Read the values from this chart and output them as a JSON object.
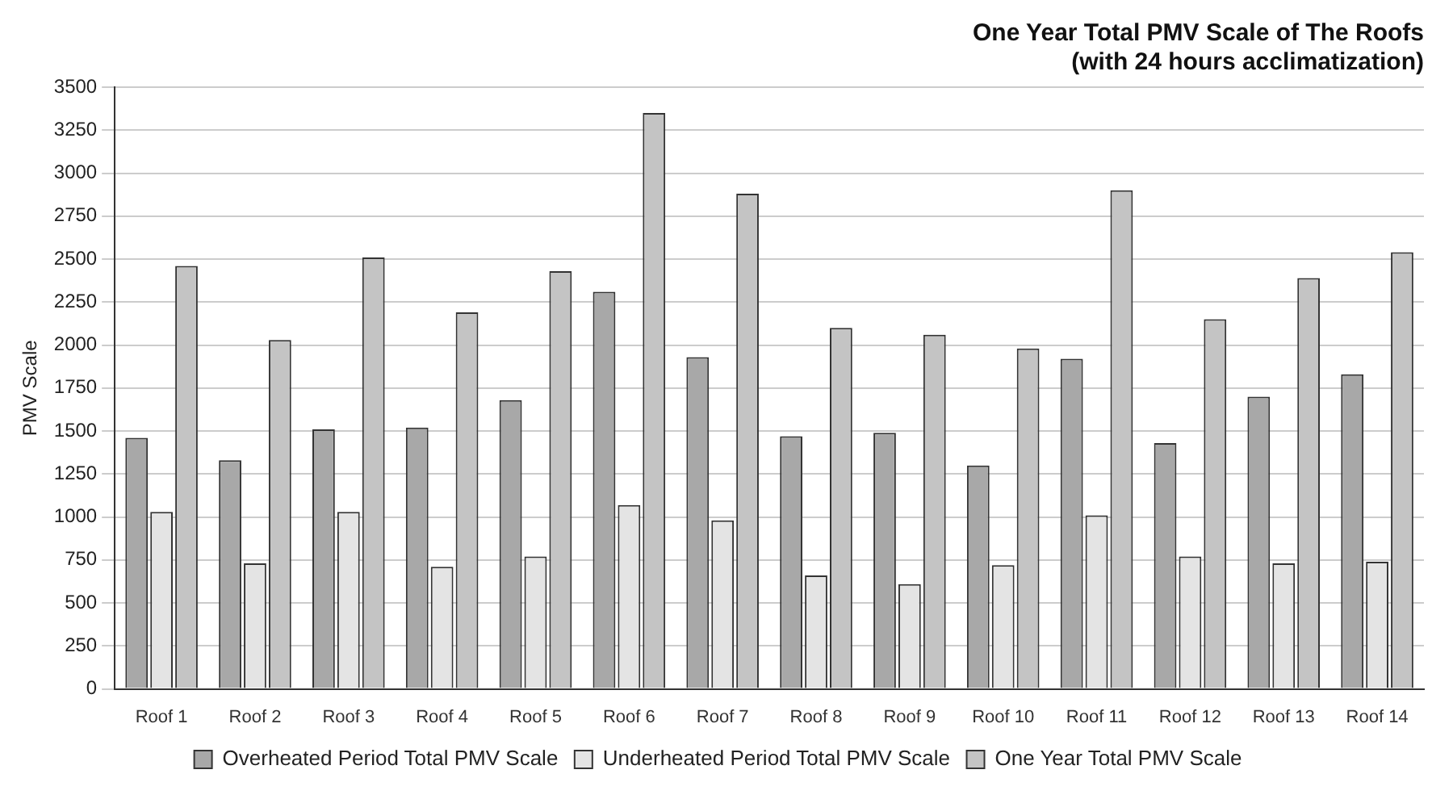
{
  "chart_data": {
    "type": "bar",
    "title": "One Year Total PMV Scale of The Roofs\n(with 24 hours acclimatization)",
    "ylabel": "PMV Scale",
    "categories": [
      "Roof 1",
      "Roof 2",
      "Roof 3",
      "Roof 4",
      "Roof 5",
      "Roof 6",
      "Roof 7",
      "Roof 8",
      "Roof 9",
      "Roof 10",
      "Roof 11",
      "Roof 12",
      "Roof 13",
      "Roof 14"
    ],
    "series": [
      {
        "name": "Overheated Period Total PMV Scale",
        "color": "#a8a8a8",
        "values": [
          1460,
          1330,
          1510,
          1520,
          1680,
          2310,
          1930,
          1470,
          1490,
          1300,
          1920,
          1430,
          1700,
          1830
        ]
      },
      {
        "name": "Underheated Period Total PMV Scale",
        "color": "#e4e4e4",
        "values": [
          1030,
          730,
          1030,
          710,
          770,
          1070,
          980,
          660,
          610,
          720,
          1010,
          770,
          730,
          740
        ]
      },
      {
        "name": "One Year Total PMV Scale",
        "color": "#c4c4c4",
        "values": [
          2460,
          2030,
          2510,
          2190,
          2430,
          3350,
          2880,
          2100,
          2060,
          1980,
          2900,
          2150,
          2390,
          2540
        ]
      }
    ],
    "ylim": [
      0,
      3500
    ],
    "yticks": [
      0,
      250,
      500,
      750,
      1000,
      1250,
      1500,
      1750,
      2000,
      2250,
      2500,
      2750,
      3000,
      3250,
      3500
    ],
    "grid": "y",
    "legend": "bottom"
  }
}
